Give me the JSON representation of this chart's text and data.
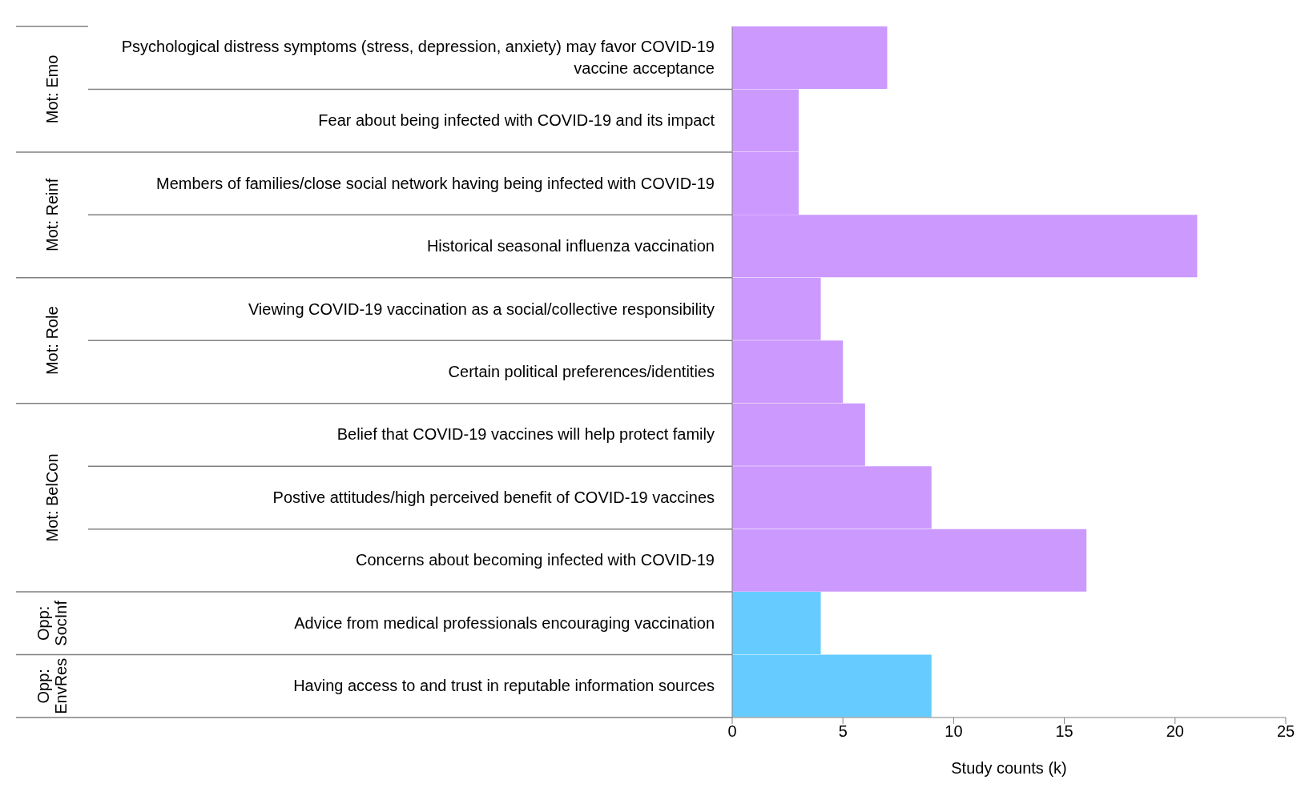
{
  "chart_data": {
    "type": "bar",
    "orientation": "horizontal",
    "categories": [
      "Psychological distress symptoms (stress, depression, anxiety) may favor COVID-19 vaccine acceptance",
      "Fear about being infected with COVID-19 and its impact",
      "Members of families/close social network having being infected with COVID-19",
      "Historical seasonal influenza vaccination",
      "Viewing COVID-19 vaccination as a social/collective responsibility",
      "Certain political preferences/identities",
      "Belief that COVID-19 vaccines will help protect family",
      "Postive attitudes/high perceived benefit of COVID-19 vaccines",
      "Concerns about becoming infected with COVID-19",
      "Advice from medical professionals encouraging vaccination",
      "Having access to and trust in reputable information sources"
    ],
    "values": [
      7,
      3,
      3,
      21,
      4,
      5,
      6,
      9,
      16,
      4,
      9
    ],
    "colors": [
      "#cc99ff",
      "#cc99ff",
      "#cc99ff",
      "#cc99ff",
      "#cc99ff",
      "#cc99ff",
      "#cc99ff",
      "#cc99ff",
      "#cc99ff",
      "#66ccff",
      "#66ccff"
    ],
    "xlim": [
      0,
      25
    ],
    "xticks": [
      0,
      5,
      10,
      15,
      20,
      25
    ],
    "xlabel": "Study counts (k)",
    "annotations": [
      "Mot: Emo",
      "Mot: Reinf",
      "Mot: Role",
      "Mot: BelCon",
      "Opp: SocInf",
      "Opp: EnvRes"
    ],
    "grid": false,
    "legend": false
  }
}
